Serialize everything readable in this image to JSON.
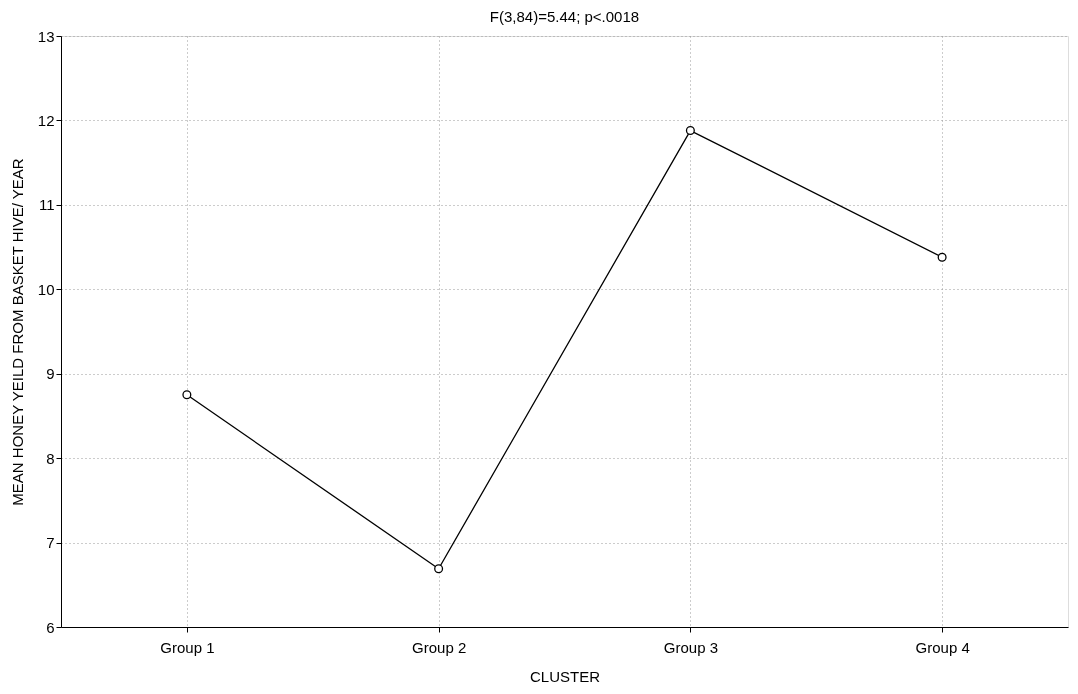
{
  "chart_data": {
    "type": "line",
    "title": "F(3,84)=5.44; p<.0018",
    "xlabel": "CLUSTER",
    "ylabel": "MEAN HONEY YEILD FROM BASKET HIVE/ YEAR",
    "categories": [
      "Group 1",
      "Group 2",
      "Group 3",
      "Group 4"
    ],
    "series": [
      {
        "color": "#000000",
        "values": [
          8.75,
          6.69,
          11.88,
          10.38
        ]
      }
    ],
    "ylim": [
      6,
      13
    ],
    "yticks": [
      6,
      7,
      8,
      9,
      10,
      11,
      12,
      13
    ],
    "grid": true,
    "marker": "circle",
    "line_style": "solid"
  }
}
